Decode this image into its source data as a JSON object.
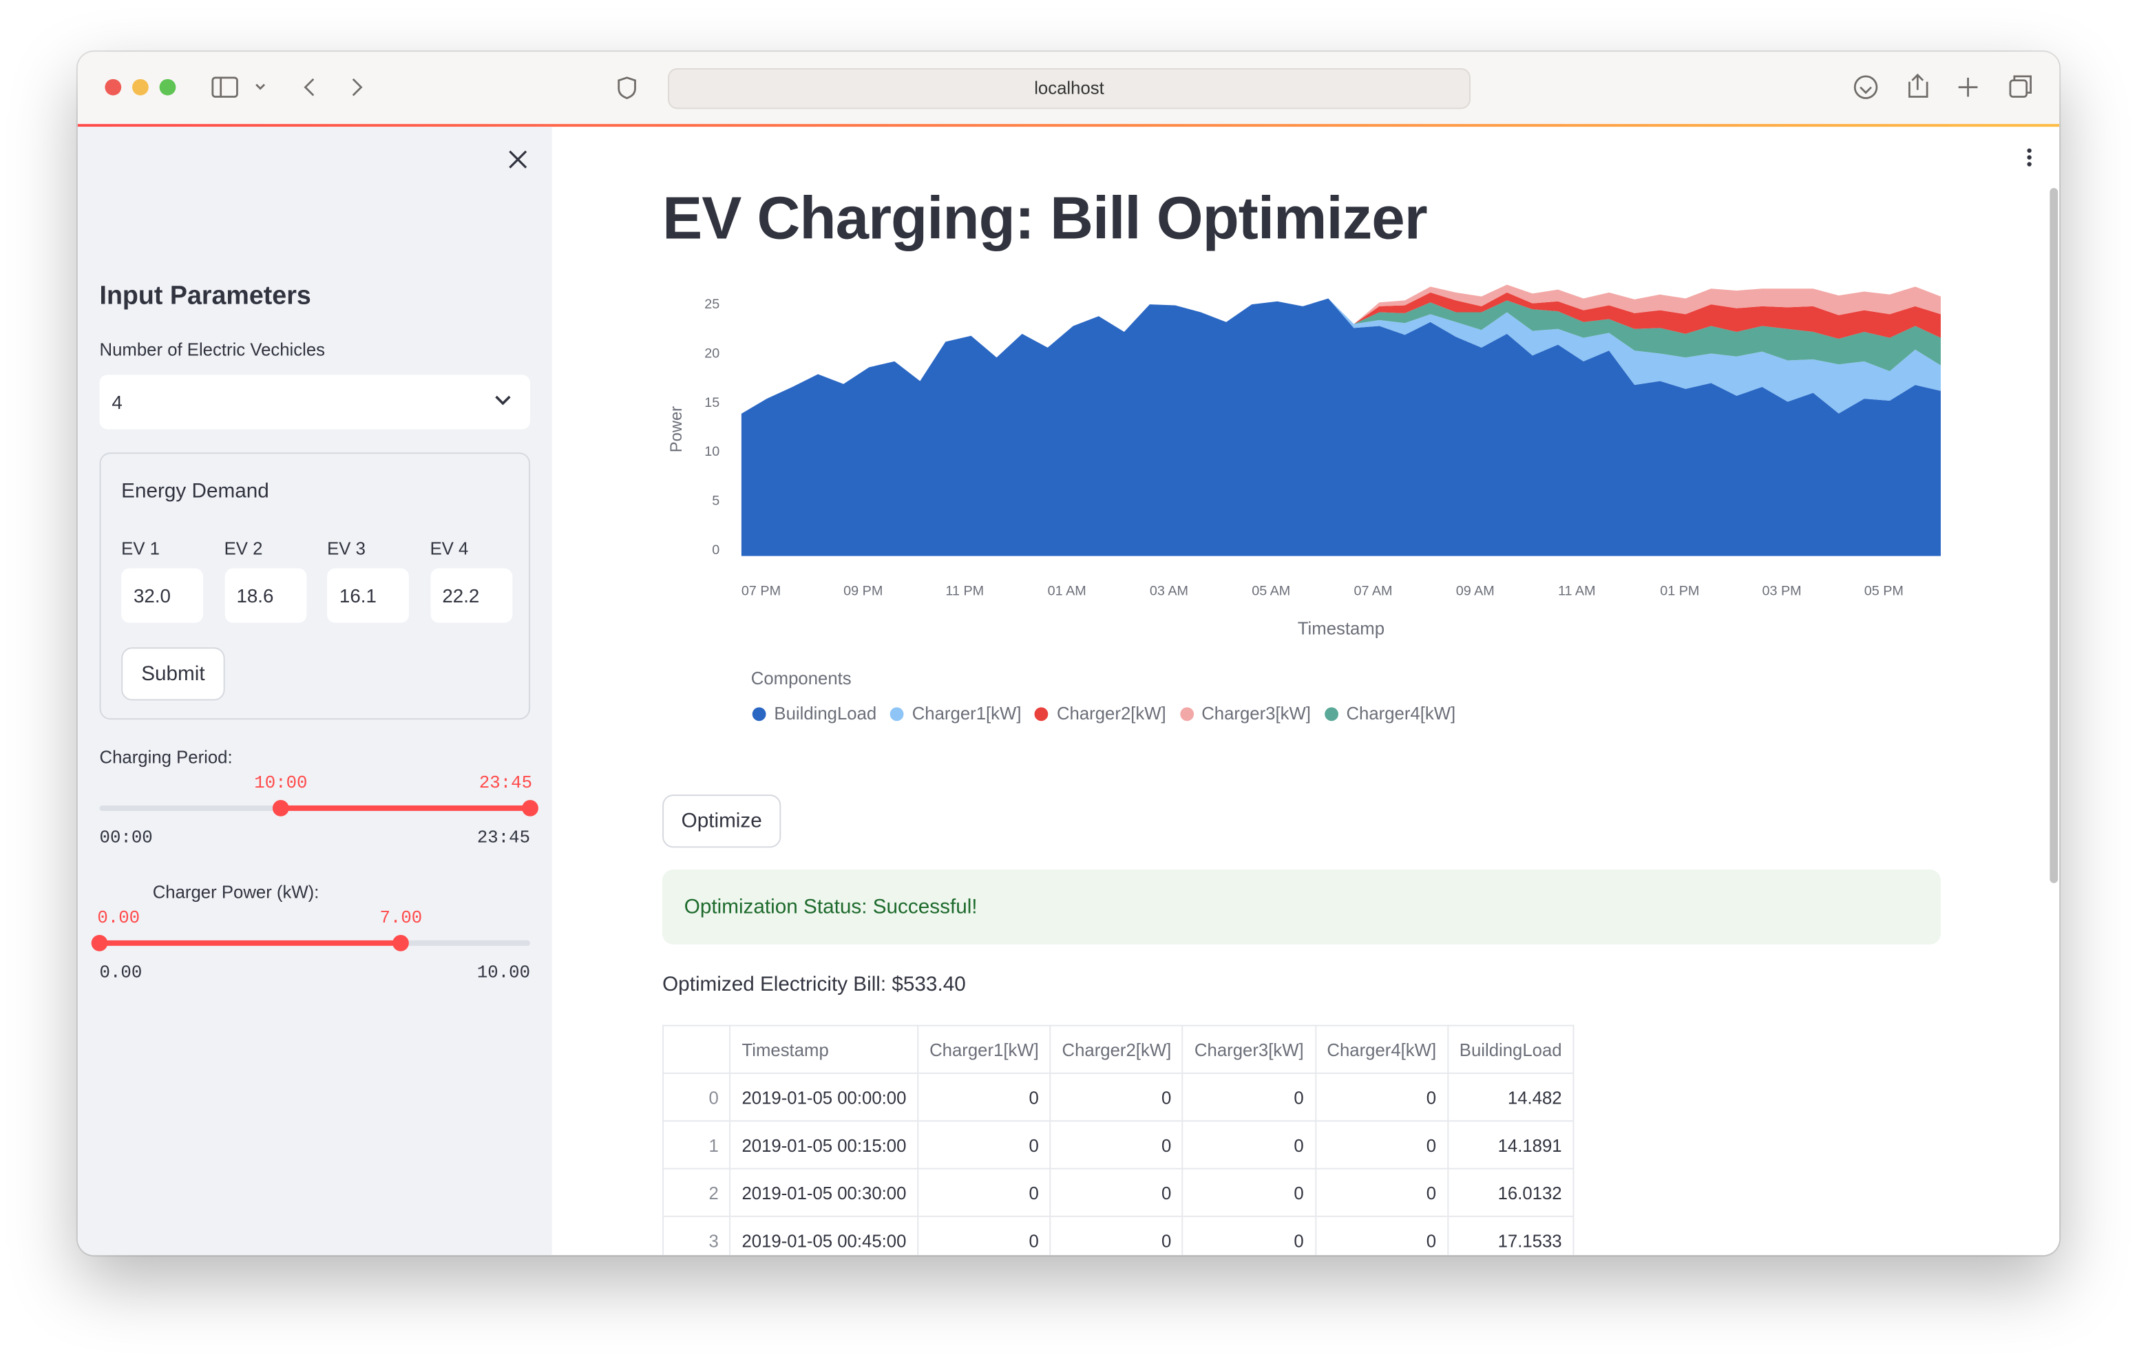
{
  "browser": {
    "url": "localhost"
  },
  "sidebar": {
    "header": "Input Parameters",
    "ev_count": {
      "label": "Number of Electric Vechicles",
      "value": "4"
    },
    "energy_demand": {
      "title": "Energy Demand",
      "fields": [
        {
          "label": "EV 1",
          "value": "32.0"
        },
        {
          "label": "EV 2",
          "value": "18.6"
        },
        {
          "label": "EV 3",
          "value": "16.1"
        },
        {
          "label": "EV 4",
          "value": "22.2"
        }
      ],
      "submit": "Submit"
    },
    "charging_period": {
      "label": "Charging Period:",
      "low": "10:00",
      "high": "23:45",
      "min": "00:00",
      "max": "23:45"
    },
    "charger_power": {
      "label": "Charger Power (kW):",
      "low": "0.00",
      "high": "7.00",
      "min": "0.00",
      "max": "10.00"
    }
  },
  "main": {
    "title": "EV Charging: Bill Optimizer",
    "optimize": "Optimize",
    "status": "Optimization Status: Successful!",
    "bill": "Optimized Electricity Bill: $533.40",
    "table": {
      "columns": [
        "Timestamp",
        "Charger1[kW]",
        "Charger2[kW]",
        "Charger3[kW]",
        "Charger4[kW]",
        "BuildingLoad"
      ],
      "rows": [
        [
          0,
          "2019-01-05 00:00:00",
          0,
          0,
          0,
          0,
          14.482
        ],
        [
          1,
          "2019-01-05 00:15:00",
          0,
          0,
          0,
          0,
          14.1891
        ],
        [
          2,
          "2019-01-05 00:30:00",
          0,
          0,
          0,
          0,
          16.0132
        ],
        [
          3,
          "2019-01-05 00:45:00",
          0,
          0,
          0,
          0,
          17.1533
        ]
      ]
    }
  },
  "chart_data": {
    "type": "stacked_area",
    "xlabel": "Timestamp",
    "ylabel": "Power",
    "legend_title": "Components",
    "categories": [
      "07 PM",
      null,
      null,
      null,
      "09 PM",
      null,
      null,
      null,
      "11 PM",
      null,
      null,
      null,
      "01 AM",
      null,
      null,
      null,
      "03 AM",
      null,
      null,
      null,
      "05 AM",
      null,
      null,
      null,
      "07 AM",
      null,
      null,
      null,
      "09 AM",
      null,
      null,
      null,
      "11 AM",
      null,
      null,
      null,
      "01 PM",
      null,
      null,
      null,
      "03 PM",
      null,
      null,
      null,
      "05 PM",
      null,
      null,
      null
    ],
    "ylim": [
      0,
      28
    ],
    "yticks": [
      0,
      5,
      10,
      15,
      20,
      25
    ],
    "grid": false,
    "series": [
      {
        "name": "BuildingLoad",
        "color": "#2a67c3",
        "values": [
          14.482,
          16.0132,
          17.2,
          18.5,
          17.5,
          19.2,
          19.8,
          17.8,
          21.8,
          22.4,
          20.2,
          22.6,
          21.2,
          23.4,
          24.4,
          22.8,
          25.6,
          25.5,
          24.8,
          23.8,
          25.6,
          25.9,
          25.4,
          26.2,
          23.2,
          23.4,
          22.5,
          23.8,
          22.3,
          21.2,
          22.6,
          20.4,
          21.5,
          19.8,
          20.9,
          17.4,
          17.8,
          17,
          17.6,
          16.3,
          17.2,
          15.7,
          16.6,
          14.5,
          16,
          15.8,
          17.4,
          16.8
        ]
      },
      {
        "name": "Charger1[kW]",
        "color": "#8ec4f6",
        "values": [
          0,
          0,
          0,
          0,
          0,
          0,
          0,
          0,
          0,
          0,
          0,
          0,
          0,
          0,
          0,
          0,
          0,
          0,
          0,
          0,
          0,
          0,
          0,
          0,
          0.4,
          0.6,
          1.2,
          0.8,
          1.5,
          1.8,
          2.2,
          2.5,
          1.6,
          2.4,
          1.8,
          3.5,
          2.8,
          3.2,
          3,
          4,
          3.6,
          4.2,
          3.4,
          5,
          3.8,
          3,
          3.6,
          2.6
        ]
      },
      {
        "name": "Charger2[kW]",
        "color": "#e9413c",
        "values": [
          0,
          0,
          0,
          0,
          0,
          0,
          0,
          0,
          0,
          0,
          0,
          0,
          0,
          0,
          0,
          0,
          0,
          0,
          0,
          0,
          0,
          0,
          0,
          0,
          0,
          0.6,
          0.8,
          1,
          1.2,
          0.6,
          0.8,
          0.6,
          1,
          1.2,
          1.4,
          1.6,
          1.8,
          2,
          2.2,
          2.4,
          2,
          2.2,
          2.6,
          2.4,
          2.2,
          2.4,
          2,
          2.4
        ]
      },
      {
        "name": "Charger3[kW]",
        "color": "#f2a8a6",
        "values": [
          0,
          0,
          0,
          0,
          0,
          0,
          0,
          0,
          0,
          0,
          0,
          0,
          0,
          0,
          0,
          0,
          0,
          0,
          0,
          0,
          0,
          0,
          0,
          0,
          0,
          0.4,
          0.5,
          0.6,
          0.8,
          1,
          0.8,
          1,
          1.2,
          1.2,
          1.3,
          1.4,
          1.6,
          1.6,
          1.6,
          1.8,
          1.8,
          1.9,
          1.8,
          2,
          1.9,
          2,
          2,
          1.8
        ]
      },
      {
        "name": "Charger4[kW]",
        "color": "#5aa897",
        "values": [
          0,
          0,
          0,
          0,
          0,
          0,
          0,
          0,
          0,
          0,
          0,
          0,
          0,
          0,
          0,
          0,
          0,
          0,
          0,
          0,
          0,
          0,
          0,
          0,
          0,
          0.8,
          1,
          1.2,
          1,
          1.8,
          1.2,
          2.2,
          1.8,
          1.6,
          1.4,
          2.2,
          2.6,
          2.4,
          2.8,
          2.5,
          2.6,
          3.2,
          2.8,
          2.6,
          3,
          3.4,
          2.4,
          2.8
        ]
      }
    ]
  }
}
